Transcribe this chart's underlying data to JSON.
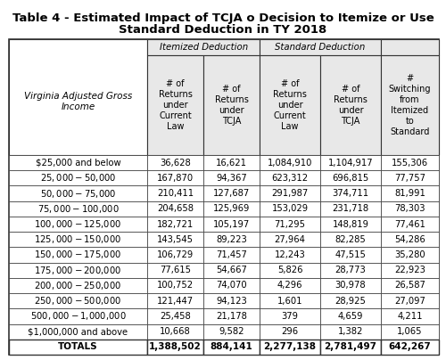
{
  "title_line1": "Table 4 - Estimated Impact of TCJA o Decision to Itemize or Use",
  "title_line2": "Standard Deduction in TY 2018",
  "row_header_label": "Virginia Adjusted Gross\nIncome",
  "col_group1_label": "Itemized Deduction",
  "col_group2_label": "Standard Deduction",
  "col_labels": [
    "# of\nReturns\nunder\nCurrent\nLaw",
    "# of\nReturns\nunder\nTCJA",
    "# of\nReturns\nunder\nCurrent\nLaw",
    "# of\nReturns\nunder\nTCJA",
    "#\nSwitching\nfrom\nItemized\nto\nStandard"
  ],
  "rows": [
    [
      "$25,000 and below",
      "36,628",
      "16,621",
      "1,084,910",
      "1,104,917",
      "155,306"
    ],
    [
      "$25,000 - $50,000",
      "167,870",
      "94,367",
      "623,312",
      "696,815",
      "77,757"
    ],
    [
      "$50,000 - $75,000",
      "210,411",
      "127,687",
      "291,987",
      "374,711",
      "81,991"
    ],
    [
      "$75,000 - $100,000",
      "204,658",
      "125,969",
      "153,029",
      "231,718",
      "78,303"
    ],
    [
      "$100,000 - $125,000",
      "182,721",
      "105,197",
      "71,295",
      "148,819",
      "77,461"
    ],
    [
      "$125,000 - $150,000",
      "143,545",
      "89,223",
      "27,964",
      "82,285",
      "54,286"
    ],
    [
      "$150,000 - $175,000",
      "106,729",
      "71,457",
      "12,243",
      "47,515",
      "35,280"
    ],
    [
      "$175,000 - $200,000",
      "77,615",
      "54,667",
      "5,826",
      "28,773",
      "22,923"
    ],
    [
      "$200,000 - $250,000",
      "100,752",
      "74,070",
      "4,296",
      "30,978",
      "26,587"
    ],
    [
      "$250,000 - $500,000",
      "121,447",
      "94,123",
      "1,601",
      "28,925",
      "27,097"
    ],
    [
      "$500,000 - $1,000,000",
      "25,458",
      "21,178",
      "379",
      "4,659",
      "4,211"
    ],
    [
      "$1,000,000 and above",
      "10,668",
      "9,582",
      "296",
      "1,382",
      "1,065"
    ]
  ],
  "totals_row": [
    "TOTALS",
    "1,388,502",
    "884,141",
    "2,277,138",
    "2,781,497",
    "642,267"
  ],
  "bg_white": "#ffffff",
  "bg_header": "#e8e8e8",
  "border_color": "#333333",
  "title_fontsize": 9.5,
  "header_fontsize": 7.0,
  "body_fontsize": 7.2,
  "totals_fontsize": 7.5
}
